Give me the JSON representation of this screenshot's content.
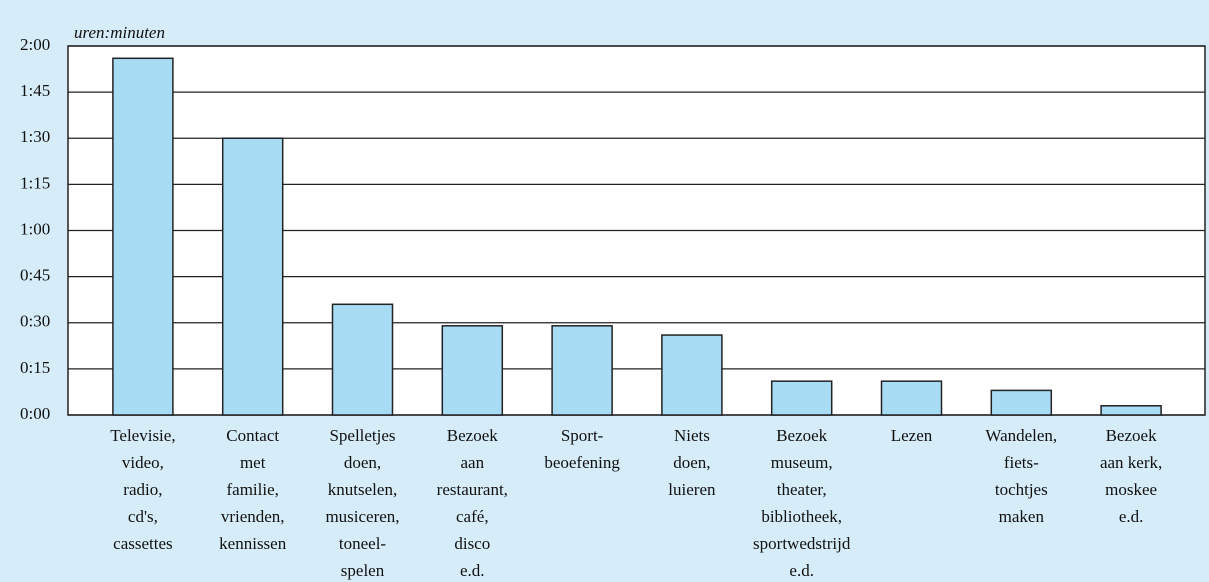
{
  "chart_data": {
    "type": "bar",
    "y_label": "uren:minuten",
    "categories": [
      [
        "Televisie,",
        "video,",
        "radio,",
        "cd's,",
        "cassettes"
      ],
      [
        "Contact",
        "met",
        "familie,",
        "vrienden,",
        "kennissen"
      ],
      [
        "Spelletjes",
        "doen,",
        "knutselen,",
        "musiceren,",
        "toneel-",
        "spelen"
      ],
      [
        "Bezoek",
        "aan",
        "restaurant,",
        "café,",
        "disco",
        "e.d."
      ],
      [
        "Sport-",
        "beoefening"
      ],
      [
        "Niets",
        "doen,",
        "luieren"
      ],
      [
        "Bezoek",
        "museum,",
        "theater,",
        "bibliotheek,",
        "sportwedstrijd",
        "e.d."
      ],
      [
        "Lezen"
      ],
      [
        "Wandelen,",
        "fiets-",
        "tochtjes",
        "maken"
      ],
      [
        "Bezoek",
        "aan kerk,",
        "moskee",
        "e.d."
      ]
    ],
    "values": [
      116,
      90,
      36,
      29,
      29,
      26,
      11,
      11,
      8,
      3
    ],
    "color": "#a8dcf5",
    "ylim": [
      0,
      120
    ],
    "yticks": [
      {
        "value": 0,
        "label": "0:00"
      },
      {
        "value": 15,
        "label": "0:15"
      },
      {
        "value": 30,
        "label": "0:30"
      },
      {
        "value": 45,
        "label": "0:45"
      },
      {
        "value": 60,
        "label": "1:00"
      },
      {
        "value": 75,
        "label": "1:15"
      },
      {
        "value": 90,
        "label": "1:30"
      },
      {
        "value": 105,
        "label": "1:45"
      },
      {
        "value": 120,
        "label": "2:00"
      }
    ],
    "grid": true
  }
}
